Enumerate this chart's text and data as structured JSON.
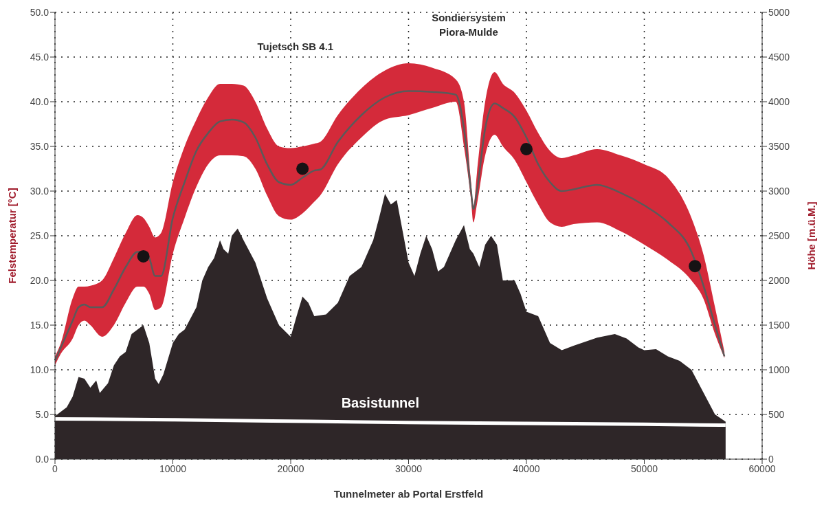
{
  "chart_data": {
    "type": "line",
    "xlabel": "Tunnelmeter ab Portal Erstfeld",
    "ylabel": "Felstemperatur [°C]",
    "y2label": "Höhe [m.ü.M.]",
    "xlim": [
      0,
      60000
    ],
    "xticks": [
      0,
      10000,
      20000,
      30000,
      40000,
      50000,
      60000
    ],
    "ylim": [
      0,
      50
    ],
    "yticks": [
      {
        "value": 0,
        "label": "0.0"
      },
      {
        "value": 5,
        "label": "5.0"
      },
      {
        "value": 10,
        "label": "10.0"
      },
      {
        "value": 15,
        "label": "15.0"
      },
      {
        "value": 20,
        "label": "20.0"
      },
      {
        "value": 25,
        "label": "25.0"
      },
      {
        "value": 30,
        "label": "30.0"
      },
      {
        "value": 35,
        "label": "35.0"
      },
      {
        "value": 40,
        "label": "40.0"
      },
      {
        "value": 45,
        "label": "45.0"
      },
      {
        "value": 50,
        "label": "50.0"
      }
    ],
    "y2lim": [
      0,
      5000
    ],
    "y2ticks": [
      0,
      500,
      1000,
      1500,
      2000,
      2500,
      3000,
      3500,
      4000,
      4500,
      5000
    ],
    "grid": true,
    "legend": false,
    "marker": "none",
    "line_style": "solid",
    "series": [
      {
        "type": "area",
        "axis": "y2",
        "color": "#2e2628",
        "x": [
          0,
          1000,
          1500,
          2000,
          2500,
          3000,
          3500,
          3800,
          4500,
          5000,
          5500,
          6000,
          6500,
          7000,
          7500,
          8000,
          8500,
          8800,
          9200,
          10000,
          10500,
          11000,
          12000,
          12500,
          13000,
          13500,
          14000,
          14300,
          14700,
          15000,
          15500,
          16000,
          17000,
          18000,
          19000,
          20000,
          20500,
          21000,
          21500,
          22000,
          23000,
          24000,
          25000,
          26000,
          27000,
          27500,
          28000,
          28500,
          29000,
          29500,
          30000,
          30500,
          31000,
          31500,
          32000,
          32500,
          33000,
          34000,
          34700,
          35200,
          35500,
          36000,
          36500,
          37000,
          37500,
          38000,
          39000,
          39500,
          40000,
          41000,
          42000,
          43000,
          44000,
          46000,
          47500,
          48500,
          49500,
          50000,
          51000,
          52000,
          53000,
          54000,
          55000,
          56000,
          56900
        ],
        "values": [
          480,
          580,
          700,
          920,
          900,
          800,
          880,
          740,
          850,
          1050,
          1150,
          1200,
          1400,
          1450,
          1500,
          1300,
          900,
          840,
          950,
          1300,
          1400,
          1450,
          1700,
          2000,
          2150,
          2250,
          2450,
          2350,
          2300,
          2500,
          2580,
          2450,
          2200,
          1800,
          1500,
          1370,
          1600,
          1820,
          1750,
          1600,
          1620,
          1750,
          2050,
          2150,
          2450,
          2700,
          2970,
          2850,
          2900,
          2550,
          2200,
          2050,
          2300,
          2500,
          2350,
          2100,
          2150,
          2450,
          2620,
          2350,
          2300,
          2150,
          2400,
          2500,
          2400,
          2000,
          2000,
          1850,
          1650,
          1600,
          1300,
          1220,
          1270,
          1360,
          1400,
          1350,
          1250,
          1220,
          1230,
          1150,
          1100,
          1000,
          750,
          500,
          420
        ]
      },
      {
        "type": "line",
        "axis": "y2",
        "color": "#ffffff",
        "x": [
          0,
          10000,
          20000,
          30000,
          40000,
          50000,
          56900
        ],
        "values": [
          450,
          440,
          425,
          410,
          400,
          390,
          380
        ]
      },
      {
        "color": "#5a5a5a",
        "x": [
          0,
          500,
          1500,
          2000,
          2500,
          3000,
          4000,
          5000,
          6000,
          7000,
          7500,
          8000,
          8500,
          9000,
          10000,
          11000,
          12000,
          13000,
          14000,
          15000,
          16000,
          17000,
          18000,
          19000,
          20000,
          21000,
          22000,
          22500,
          24000,
          26000,
          28000,
          30000,
          32000,
          34000,
          34700,
          35300,
          35500,
          35800,
          36500,
          37300,
          38000,
          39000,
          40000,
          41000,
          42000,
          43000,
          44000,
          46000,
          48000,
          50000,
          52000,
          54000,
          55000,
          56000,
          56800
        ],
        "values": [
          11.0,
          12.5,
          15.5,
          17.0,
          17.3,
          17.0,
          17.0,
          19.0,
          21.5,
          23.2,
          23.2,
          22.5,
          20.5,
          20.5,
          27,
          31,
          34.5,
          36.5,
          37.8,
          38.0,
          37.7,
          36,
          33,
          31,
          30.7,
          31.5,
          32.3,
          32.4,
          35.5,
          38.5,
          40.5,
          41.2,
          41.1,
          40.8,
          37,
          30,
          28.0,
          30,
          37,
          39.8,
          39.3,
          38.3,
          36,
          33,
          31,
          30,
          30.2,
          30.7,
          29.8,
          28.4,
          26.5,
          23.2,
          19.5,
          15,
          11.5
        ],
        "lower": [
          10.5,
          11.8,
          13.5,
          15,
          15.5,
          15,
          13.7,
          15,
          17.5,
          19.3,
          19.3,
          18.5,
          16.7,
          17,
          23,
          27,
          30.5,
          33,
          34,
          34,
          33.9,
          32.5,
          29.5,
          27.2,
          26.8,
          27.5,
          28.8,
          29.5,
          33,
          36,
          38,
          38.5,
          39.3,
          40,
          35,
          29,
          26.5,
          28.5,
          34,
          36.3,
          35,
          33.5,
          31,
          28.5,
          26.5,
          26,
          26.3,
          26.5,
          25.5,
          24,
          22.3,
          20,
          18,
          14,
          11.3
        ],
        "upper": [
          11.5,
          13,
          18,
          19.3,
          19.3,
          19.4,
          20,
          22.5,
          25.3,
          27.3,
          27,
          26,
          24.8,
          25.3,
          31,
          35,
          38,
          40.5,
          42,
          42,
          41.8,
          40,
          37,
          35,
          34.8,
          35,
          35.3,
          35.5,
          38.5,
          41.5,
          43.5,
          44.3,
          43.8,
          42.5,
          40,
          31,
          28.3,
          32,
          40,
          43.3,
          42,
          41,
          39,
          36.5,
          34.5,
          33.7,
          34,
          34.7,
          34,
          33,
          31.5,
          27,
          23,
          17,
          12
        ]
      },
      {
        "type": "scatter",
        "color": "#161214",
        "marker": "circle",
        "x": [
          7500,
          21000,
          40000,
          54300
        ],
        "values": [
          22.7,
          32.5,
          34.7,
          21.6
        ]
      }
    ],
    "annotations": [
      "Tujetsch SB 4.1",
      "Sondiersystem\nPiora-Mulde",
      "Basistunnel"
    ]
  }
}
